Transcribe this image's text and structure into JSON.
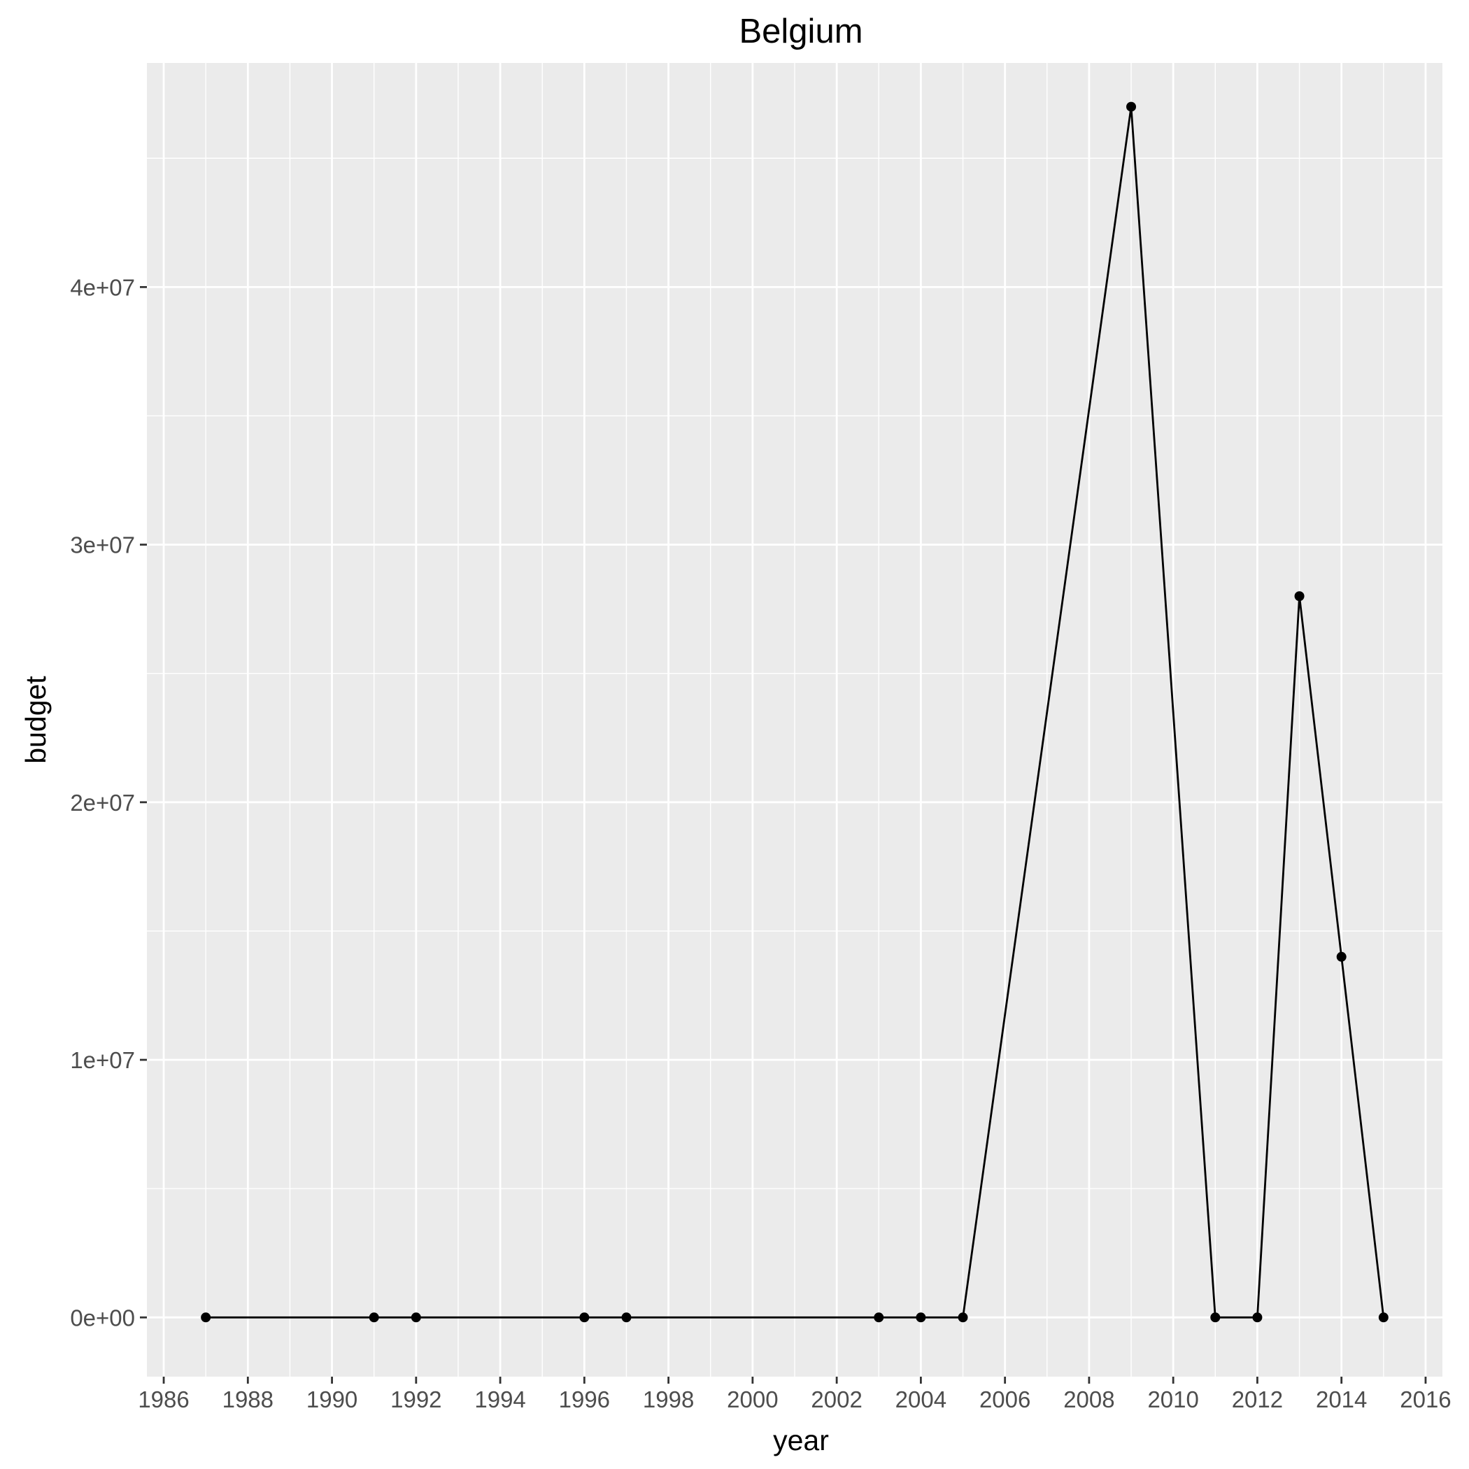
{
  "chart_data": {
    "type": "line",
    "title": "Belgium",
    "xlabel": "year",
    "ylabel": "budget",
    "xlim": [
      1985.6,
      2016.4
    ],
    "ylim": [
      -2300000,
      48700000
    ],
    "x_ticks": [
      1986,
      1988,
      1990,
      1992,
      1994,
      1996,
      1998,
      2000,
      2002,
      2004,
      2006,
      2008,
      2010,
      2012,
      2014,
      2016
    ],
    "x_tick_labels": [
      "1986",
      "1988",
      "1990",
      "1992",
      "1994",
      "1996",
      "1998",
      "2000",
      "2002",
      "2004",
      "2006",
      "2008",
      "2010",
      "2012",
      "2014",
      "2016"
    ],
    "y_ticks": [
      0,
      10000000,
      20000000,
      30000000,
      40000000
    ],
    "y_tick_labels": [
      "0e+00",
      "1e+07",
      "2e+07",
      "3e+07",
      "4e+07"
    ],
    "grid": true,
    "legend": "none",
    "colors": {
      "panel": "#ebebeb",
      "grid": "#ffffff",
      "line": "#000000",
      "tick": "#333333"
    },
    "series": [
      {
        "x": [
          1987,
          1991,
          1992,
          1996,
          1997,
          2003,
          2004,
          2005,
          2009,
          2011,
          2012,
          2013,
          2014,
          2015
        ],
        "y": [
          0,
          0,
          0,
          0,
          0,
          0,
          0,
          0,
          47000000,
          0,
          0,
          28000000,
          14000000,
          0
        ]
      }
    ]
  }
}
